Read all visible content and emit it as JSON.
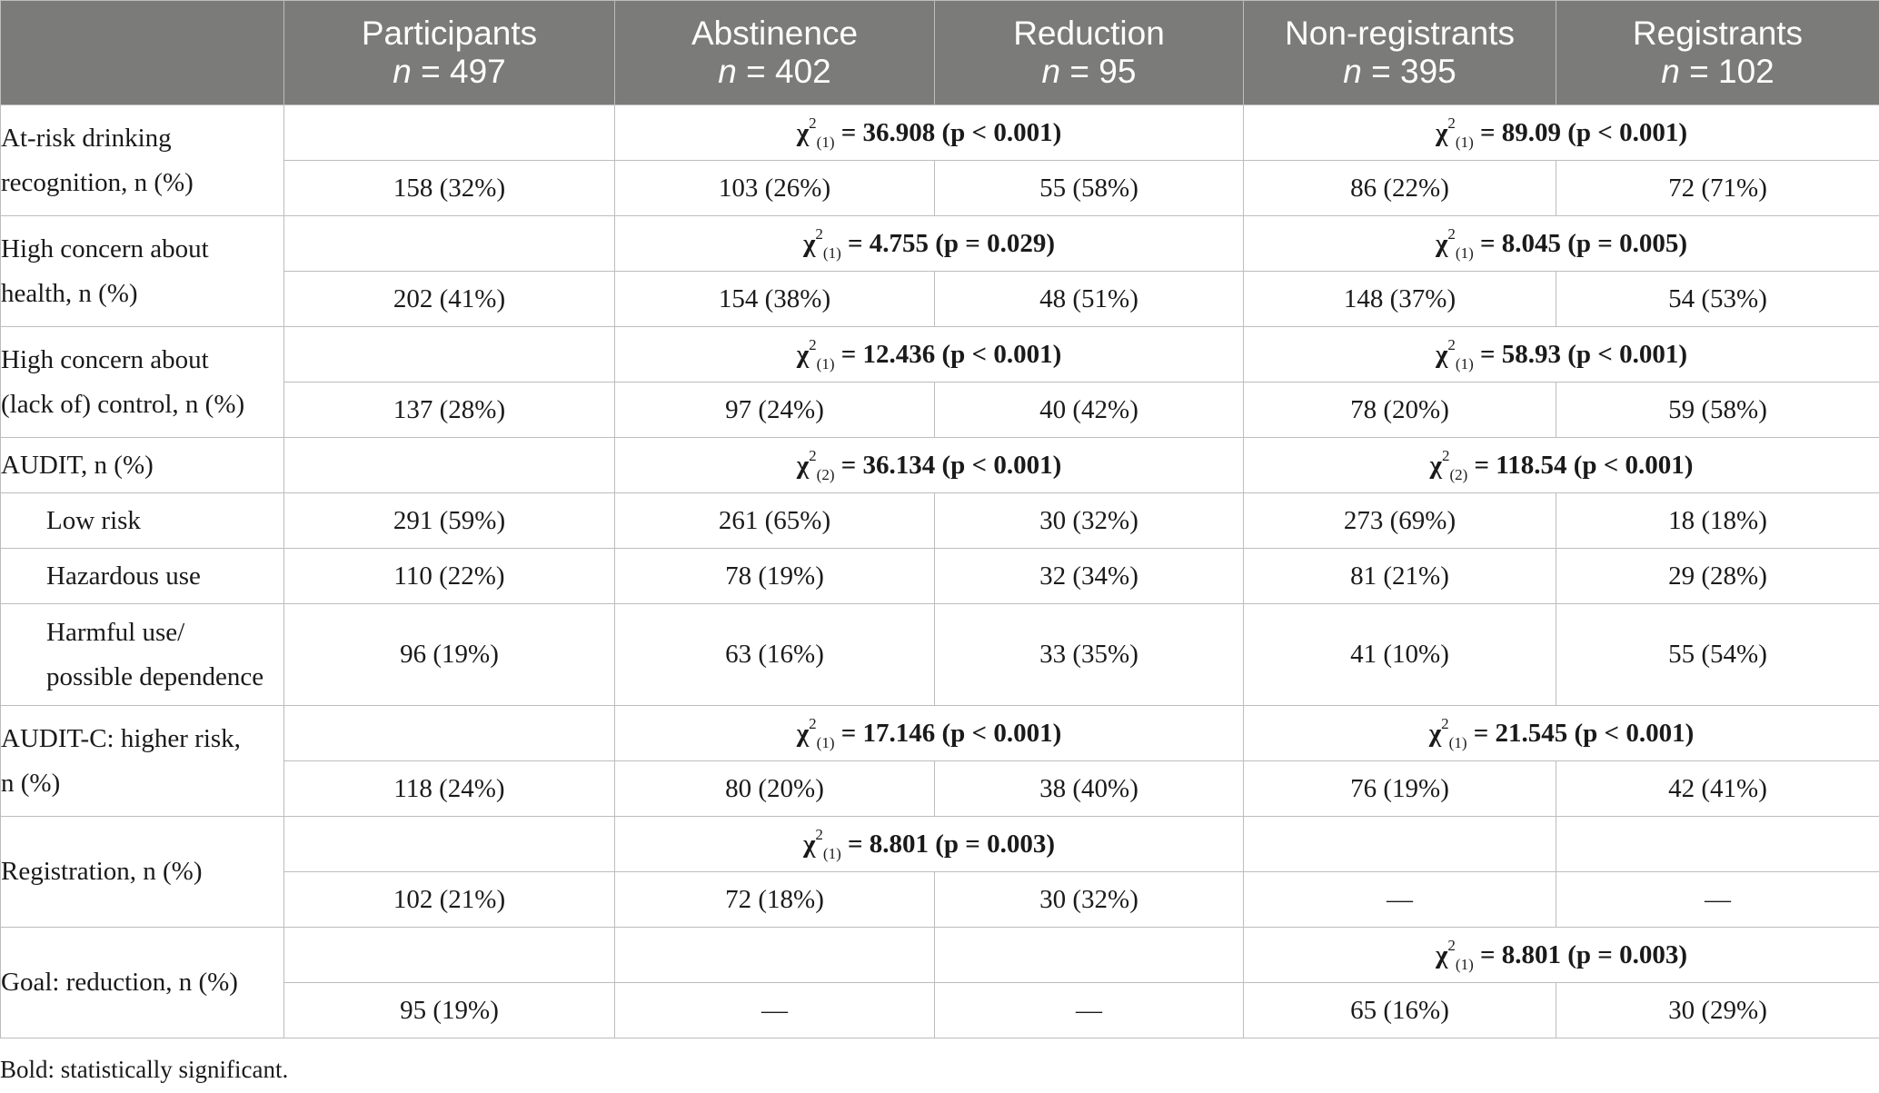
{
  "header": {
    "columns": [
      {
        "title": "",
        "n": ""
      },
      {
        "title": "Participants",
        "n": "497"
      },
      {
        "title": "Abstinence",
        "n": "402"
      },
      {
        "title": "Reduction",
        "n": "95"
      },
      {
        "title": "Non-registrants",
        "n": "395"
      },
      {
        "title": "Registrants",
        "n": "102"
      }
    ],
    "n_prefix": "n",
    "n_eq": " = "
  },
  "rows": {
    "at_risk": {
      "label_1": "At-risk drinking",
      "label_2": "recognition, n (%)",
      "chi_goal": {
        "df": "(1)",
        "stat": " = 36.908 (p < 0.001)"
      },
      "chi_reg": {
        "df": "(1)",
        "stat": " = 89.09 (p < 0.001)"
      },
      "values": [
        "158 (32%)",
        "103 (26%)",
        "55 (58%)",
        "86 (22%)",
        "72 (71%)"
      ]
    },
    "health": {
      "label_1": "High concern about",
      "label_2": "health, n (%)",
      "chi_goal": {
        "df": "(1)",
        "stat": " = 4.755 (p = 0.029)"
      },
      "chi_reg": {
        "df": "(1)",
        "stat": " = 8.045 (p = 0.005)"
      },
      "values": [
        "202 (41%)",
        "154 (38%)",
        "48 (51%)",
        "148 (37%)",
        "54 (53%)"
      ]
    },
    "control": {
      "label_1": "High concern about",
      "label_2": "(lack of) control, n (%)",
      "chi_goal": {
        "df": "(1)",
        "stat": " = 12.436 (p < 0.001)"
      },
      "chi_reg": {
        "df": "(1)",
        "stat": " = 58.93 (p < 0.001)"
      },
      "values": [
        "137 (28%)",
        "97 (24%)",
        "40 (42%)",
        "78 (20%)",
        "59 (58%)"
      ]
    },
    "audit": {
      "label": "AUDIT, n (%)",
      "chi_goal": {
        "df": "(2)",
        "stat": " = 36.134 (p < 0.001)"
      },
      "chi_reg": {
        "df": "(2)",
        "stat": " = 118.54 (p < 0.001)"
      },
      "sub": [
        {
          "label": "Low risk",
          "values": [
            "291 (59%)",
            "261 (65%)",
            "30 (32%)",
            "273 (69%)",
            "18 (18%)"
          ]
        },
        {
          "label": "Hazardous use",
          "values": [
            "110 (22%)",
            "78 (19%)",
            "32 (34%)",
            "81 (21%)",
            "29 (28%)"
          ]
        },
        {
          "label_1": "Harmful use/",
          "label_2": "possible dependence",
          "values": [
            "96 (19%)",
            "63 (16%)",
            "33 (35%)",
            "41 (10%)",
            "55 (54%)"
          ]
        }
      ]
    },
    "auditc": {
      "label_1": "AUDIT-C: higher risk,",
      "label_2": "n (%)",
      "chi_goal": {
        "df": "(1)",
        "stat": " = 17.146 (p < 0.001)"
      },
      "chi_reg": {
        "df": "(1)",
        "stat": " = 21.545 (p < 0.001)"
      },
      "values": [
        "118 (24%)",
        "80 (20%)",
        "38 (40%)",
        "76 (19%)",
        "42 (41%)"
      ]
    },
    "registration": {
      "label": "Registration, n (%)",
      "chi_goal": {
        "df": "(1)",
        "stat": " = 8.801 (p = 0.003)"
      },
      "values": [
        "102 (21%)",
        "72 (18%)",
        "30 (32%)",
        "—",
        "—"
      ]
    },
    "goal": {
      "label": "Goal: reduction, n (%)",
      "chi_reg": {
        "df": "(1)",
        "stat": " = 8.801 (p = 0.003)"
      },
      "values": [
        "95 (19%)",
        "—",
        "—",
        "65 (16%)",
        "30 (29%)"
      ]
    }
  },
  "chi_symbol": "χ",
  "chi_sup": "2",
  "footnote": "Bold: statistically significant."
}
